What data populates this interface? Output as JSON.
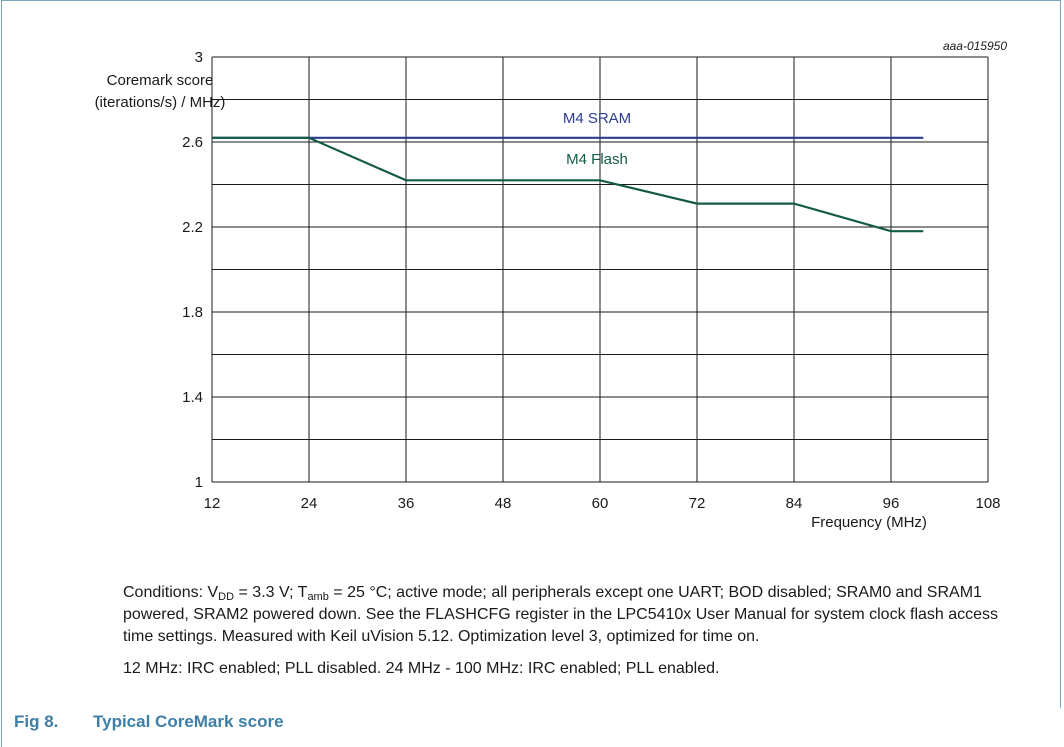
{
  "figure_id": "aaa-015950",
  "chart_data": {
    "type": "line",
    "xlabel": "Frequency (MHz)",
    "ylabel_line1": "Coremark score",
    "ylabel_line2": "(iterations/s) / MHz)",
    "xlim": [
      12,
      108
    ],
    "ylim": [
      1,
      3
    ],
    "x_ticks": [
      "12",
      "24",
      "36",
      "48",
      "60",
      "72",
      "84",
      "96",
      "108"
    ],
    "y_ticks": [
      "3",
      "2.6",
      "2.2",
      "1.8",
      "1.4",
      "1"
    ],
    "y_tick_values": [
      3,
      2.6,
      2.2,
      1.8,
      1.4,
      1
    ],
    "grid": true,
    "series": [
      {
        "name": "M4 SRAM",
        "color": "#2a3d8f",
        "x": [
          12,
          100
        ],
        "y": [
          2.62,
          2.62
        ]
      },
      {
        "name": "M4 Flash",
        "color": "#135b47",
        "x": [
          12,
          24,
          36,
          48,
          60,
          72,
          84,
          96,
          100
        ],
        "y": [
          2.62,
          2.62,
          2.42,
          2.42,
          2.42,
          2.31,
          2.31,
          2.18,
          2.18
        ]
      }
    ]
  },
  "conditions": {
    "l1_a": "Conditions: V",
    "l1_sub1": "DD",
    "l1_b": " = 3.3 V; T",
    "l1_sub2": "amb",
    "l1_c": " = 25 °C; active mode; all peripherals except one UART; BOD disabled; SRAM0 and SRAM1 powered, SRAM2 powered down. See the FLASHCFG register in the LPC5410x User Manual for system clock flash access time settings. Measured with Keil uVision 5.12. Optimization level 3, optimized for time on.",
    "line2": "12 MHz: IRC enabled; PLL disabled. 24 MHz - 100 MHz: IRC enabled; PLL enabled."
  },
  "caption": {
    "number": "Fig 8.",
    "title": "Typical CoreMark score"
  }
}
